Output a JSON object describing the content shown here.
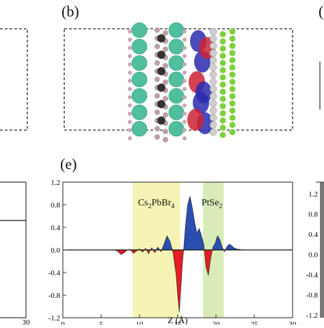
{
  "panel_b": {
    "label": "(b)"
  },
  "panel_e": {
    "label": "(e)",
    "regions": [
      {
        "text": "Cs",
        "sub": "2",
        "text2": "PbBr",
        "sub2": "4",
        "color": "#f6f4b4"
      },
      {
        "text": "PtSe",
        "sub": "2",
        "text2": "",
        "sub2": "",
        "color": "#d9ecb7"
      }
    ],
    "xlabel": "Z (Å)"
  },
  "left_panel": {
    "xtick_last": "30"
  },
  "right_panel": {
    "ytick_labels": [
      "1.2",
      "0.8",
      "0.4",
      "0.0",
      "-0.4",
      "-0.8",
      "-1.2"
    ]
  },
  "colors": {
    "positive_fill": "#2b4fb0",
    "negative_fill": "#e21f26",
    "frame": "#333333"
  },
  "chart_data": {
    "type": "area",
    "title": "",
    "xlabel": "Z (Å)",
    "ylabel": "",
    "xlim": [
      0,
      30
    ],
    "ylim": [
      -1.2,
      1.2
    ],
    "x_ticks": [
      "0",
      "5",
      "10",
      "15",
      "20",
      "25",
      "30"
    ],
    "y_ticks": [
      "1.2",
      "0.8",
      "0.4",
      "0.0",
      "-0.4",
      "-0.8",
      "-1.2"
    ],
    "shaded_regions": [
      {
        "label": "Cs2PbBr4",
        "x_range": [
          9.1,
          15.3
        ]
      },
      {
        "label": "PtSe2",
        "x_range": [
          18.3,
          21.0
        ]
      }
    ],
    "series": [
      {
        "x": [
          0,
          6.8,
          7.2,
          7.6,
          8.0,
          8.4,
          8.8,
          9.2,
          9.6,
          10.0,
          10.4,
          10.8,
          11.2,
          11.6,
          12.0,
          12.4,
          12.8,
          13.2,
          13.6,
          14.0,
          14.4,
          14.8,
          15.0,
          15.2,
          15.4,
          15.6,
          15.8,
          16.0,
          16.3,
          16.6,
          16.9,
          17.2,
          17.5,
          17.8,
          18.1,
          18.4,
          18.7,
          19.0,
          19.3,
          19.6,
          19.9,
          20.2,
          20.5,
          20.8,
          21.1,
          21.4,
          21.7,
          22.0,
          22.3,
          22.6,
          23.0,
          23.5,
          24.0,
          30
        ],
        "y": [
          0,
          0,
          -0.03,
          -0.08,
          -0.05,
          0,
          0.01,
          -0.06,
          -0.02,
          0.02,
          -0.04,
          0.03,
          -0.07,
          0.04,
          -0.05,
          0.05,
          -0.03,
          0.1,
          0.25,
          0.15,
          -0.05,
          -0.45,
          -0.8,
          -1.1,
          -0.7,
          -0.25,
          0.05,
          0.4,
          0.8,
          0.95,
          0.75,
          0.5,
          0.3,
          0.38,
          0.25,
          0.1,
          -0.3,
          -0.45,
          -0.15,
          0.05,
          0.12,
          0.25,
          0.18,
          0.05,
          -0.03,
          0.05,
          0.1,
          0.08,
          0.04,
          0.02,
          0.01,
          0,
          0,
          0
        ]
      }
    ]
  }
}
